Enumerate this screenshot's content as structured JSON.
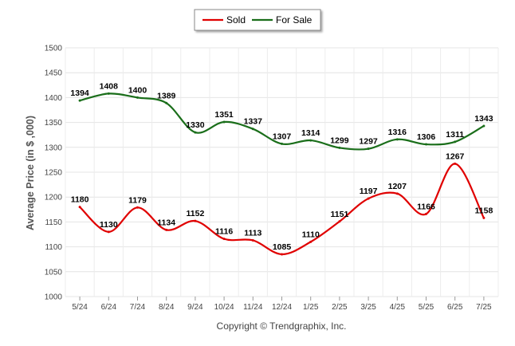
{
  "chart_data": {
    "type": "line",
    "categories": [
      "5/24",
      "6/24",
      "7/24",
      "8/24",
      "9/24",
      "10/24",
      "11/24",
      "12/24",
      "1/25",
      "2/25",
      "3/25",
      "4/25",
      "5/25",
      "6/25",
      "7/25"
    ],
    "series": [
      {
        "name": "Sold",
        "color": "#e00000",
        "values": [
          1180,
          1130,
          1179,
          1134,
          1152,
          1116,
          1113,
          1085,
          1110,
          1151,
          1197,
          1207,
          1166,
          1267,
          1158
        ]
      },
      {
        "name": "For Sale",
        "color": "#1a6e1a",
        "values": [
          1394,
          1408,
          1400,
          1389,
          1330,
          1351,
          1337,
          1307,
          1314,
          1299,
          1297,
          1316,
          1306,
          1311,
          1343
        ]
      }
    ],
    "ylabel": "Average Price (in $ ,000)",
    "ylim": [
      1000,
      1500
    ],
    "yticks": [
      1000,
      1050,
      1100,
      1150,
      1200,
      1250,
      1300,
      1350,
      1400,
      1450,
      1500
    ],
    "grid": true,
    "legend_position": "top-center"
  },
  "footer": {
    "copyright": "Copyright © Trendgraphix, Inc."
  }
}
